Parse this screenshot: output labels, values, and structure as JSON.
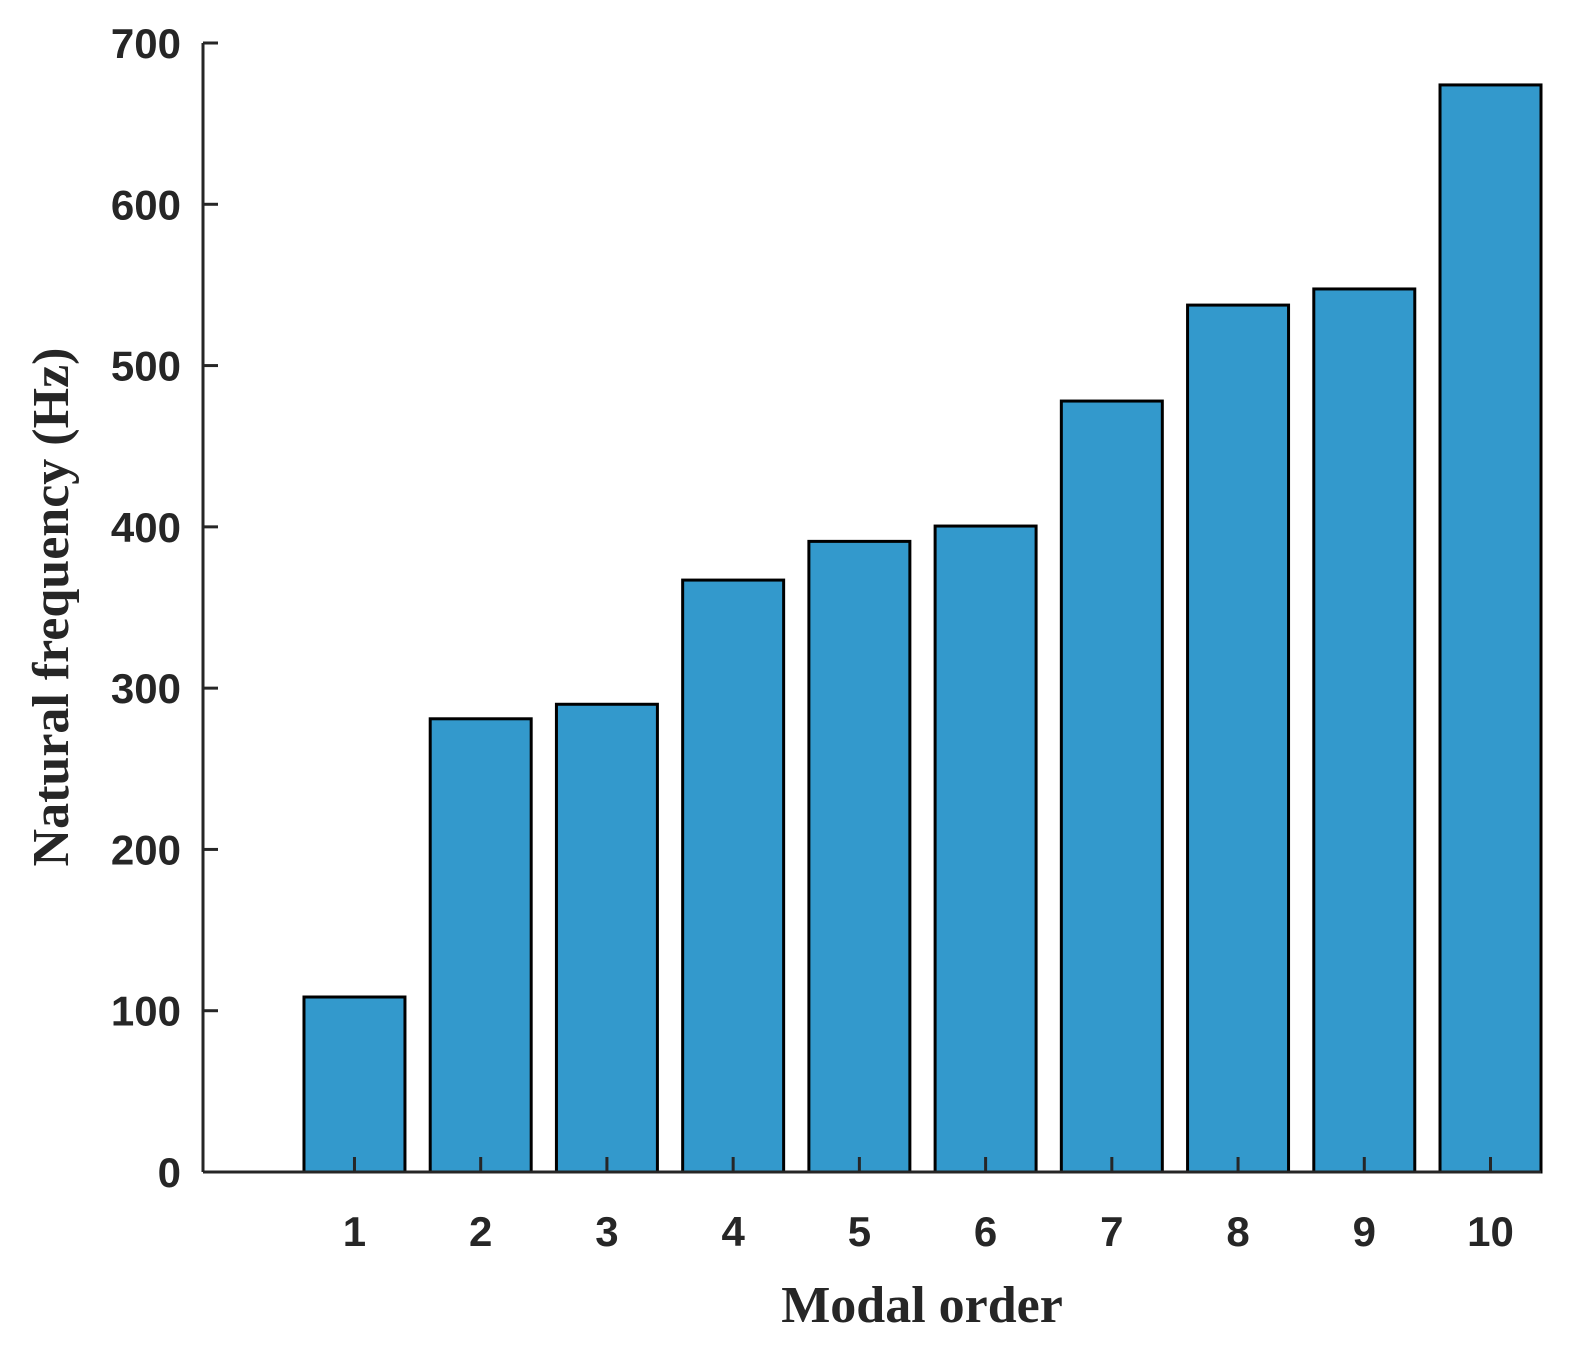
{
  "chart_data": {
    "type": "bar",
    "title": "",
    "xlabel": "Modal order",
    "ylabel": "Natural frequency (Hz)",
    "categories": [
      "1",
      "2",
      "3",
      "4",
      "5",
      "6",
      "7",
      "8",
      "9",
      "10"
    ],
    "values": [
      108.5,
      281,
      290,
      367,
      391,
      400.5,
      478,
      537.5,
      547.5,
      674
    ],
    "ylim": [
      0,
      700
    ],
    "yticks": [
      0,
      100,
      200,
      300,
      400,
      500,
      600,
      700
    ],
    "xlim": [
      -0.2,
      10.4
    ],
    "grid": false,
    "bar_color": "#3399cc",
    "edge_color": "#000000"
  }
}
